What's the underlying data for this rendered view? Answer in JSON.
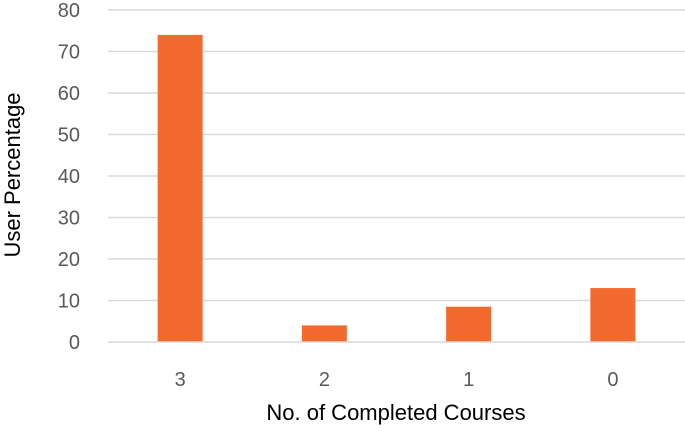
{
  "chart_data": {
    "type": "bar",
    "categories": [
      "3",
      "2",
      "1",
      "0"
    ],
    "values": [
      74,
      4,
      8.5,
      13
    ],
    "title": "",
    "xlabel": "No. of Completed Courses",
    "ylabel": "User Percentage",
    "ylim": [
      0,
      80
    ],
    "yticks": [
      0,
      10,
      20,
      30,
      40,
      50,
      60,
      70,
      80
    ],
    "grid": true,
    "legend": "none",
    "colors": {
      "bar": "#F26A2E",
      "grid": "#D9D9D9",
      "tick_text": "#595959"
    }
  }
}
